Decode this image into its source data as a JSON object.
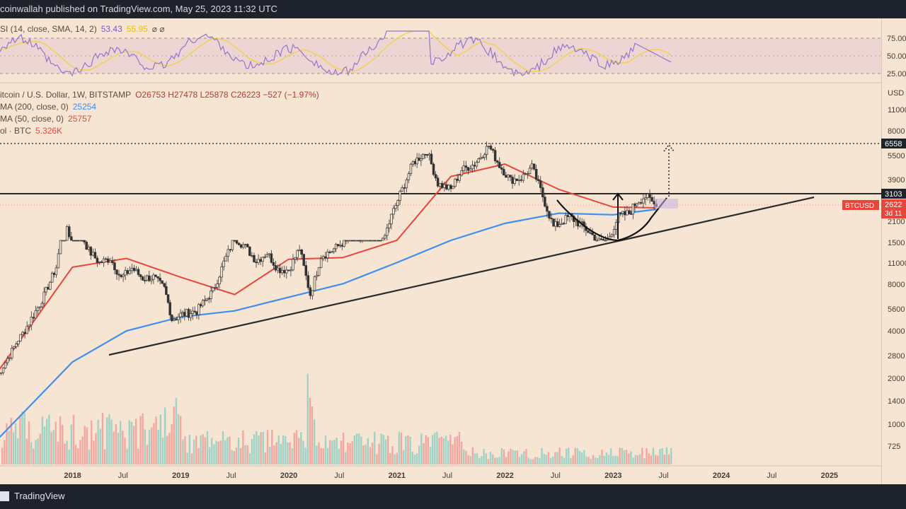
{
  "header": {
    "publisher": "coinwallah published on TradingView.com, May 25, 2023 11:32 UTC"
  },
  "footer": {
    "brand": "TradingView"
  },
  "legends": {
    "rsi": {
      "label": "SI (14, close, SMA, 14, 2)",
      "value": "53.43",
      "value2": "55.95",
      "icons": "⌀ ⌀"
    },
    "symbol": {
      "label": "itcoin / U.S. Dollar, 1W, BITSTAMP",
      "ohlc": "O26753  H27478  L25878  C26223  −527 (−1.97%)"
    },
    "sma200": {
      "label": "MA (200, close, 0)",
      "value": "25254",
      "color": "#3d8ff0"
    },
    "sma50": {
      "label": "MA (50, close, 0)",
      "value": "25757",
      "color": "#e8453c"
    },
    "vol": {
      "label": "ol · BTC",
      "value": "5.326K",
      "color": "#e8453c"
    }
  },
  "rsi_axis": [
    "75.00",
    "50.00",
    "25.00"
  ],
  "price_axis": [
    "USD",
    "11000",
    "8000",
    "6558",
    "5500",
    "3900",
    "3103",
    "2622",
    "3d 11",
    "2100",
    "1500",
    "11000",
    "8000",
    "5600",
    "4000",
    "2800",
    "2000",
    "1400",
    "1000",
    "725"
  ],
  "price_tags": {
    "resistance": "3103",
    "target": "6558",
    "current": "2622",
    "countdown": "3d 11",
    "symbol_tag": "BTCUSD"
  },
  "x_axis": [
    "2018",
    "Jul",
    "2019",
    "Jul",
    "2020",
    "Jul",
    "2021",
    "Jul",
    "2022",
    "Jul",
    "2023",
    "Jul",
    "2024",
    "Jul",
    "2025"
  ],
  "colors": {
    "up": "#26a69a",
    "down": "#ef5350",
    "sma200": "#3d8ff0",
    "sma50": "#e8453c",
    "rsi": "#9575cd",
    "rsi_ma": "#f2d04c",
    "bg": "#f7e5d3"
  },
  "chart_data": {
    "type": "candlestick",
    "symbol": "BTCUSD",
    "interval": "1W",
    "y_scale": "log",
    "series": [
      {
        "name": "Bitcoin / U.S. Dollar",
        "values": [
          [
            2017.3,
            1400
          ],
          [
            2017.5,
            2600
          ],
          [
            2017.7,
            4300
          ],
          [
            2017.85,
            7500
          ],
          [
            2017.95,
            19000
          ],
          [
            2018.05,
            13500
          ],
          [
            2018.15,
            9500
          ],
          [
            2018.25,
            8000
          ],
          [
            2018.35,
            8500
          ],
          [
            2018.45,
            6400
          ],
          [
            2018.55,
            7400
          ],
          [
            2018.65,
            6400
          ],
          [
            2018.75,
            6500
          ],
          [
            2018.85,
            5500
          ],
          [
            2018.92,
            3500
          ],
          [
            2019.0,
            3700
          ],
          [
            2019.15,
            3900
          ],
          [
            2019.3,
            5300
          ],
          [
            2019.4,
            8000
          ],
          [
            2019.5,
            11500
          ],
          [
            2019.6,
            10000
          ],
          [
            2019.7,
            8200
          ],
          [
            2019.8,
            9200
          ],
          [
            2019.9,
            7300
          ],
          [
            2020.0,
            7200
          ],
          [
            2020.1,
            9800
          ],
          [
            2020.2,
            5000
          ],
          [
            2020.3,
            8800
          ],
          [
            2020.4,
            9500
          ],
          [
            2020.55,
            11300
          ],
          [
            2020.7,
            11500
          ],
          [
            2020.85,
            15000
          ],
          [
            2020.95,
            23000
          ],
          [
            2021.05,
            33000
          ],
          [
            2021.15,
            49000
          ],
          [
            2021.28,
            58000
          ],
          [
            2021.38,
            36000
          ],
          [
            2021.5,
            33000
          ],
          [
            2021.6,
            44000
          ],
          [
            2021.72,
            48000
          ],
          [
            2021.85,
            63000
          ],
          [
            2021.95,
            47000
          ],
          [
            2022.05,
            38000
          ],
          [
            2022.15,
            39000
          ],
          [
            2022.25,
            46000
          ],
          [
            2022.35,
            30000
          ],
          [
            2022.45,
            20000
          ],
          [
            2022.6,
            23000
          ],
          [
            2022.75,
            19500
          ],
          [
            2022.87,
            16500
          ],
          [
            2022.95,
            16800
          ],
          [
            2023.05,
            23000
          ],
          [
            2023.15,
            24000
          ],
          [
            2023.22,
            28000
          ],
          [
            2023.3,
            30000
          ],
          [
            2023.4,
            26223
          ]
        ]
      },
      {
        "name": "SMA 200",
        "values": [
          [
            2017.3,
            500
          ],
          [
            2018.0,
            1800
          ],
          [
            2018.5,
            3000
          ],
          [
            2019.0,
            3600
          ],
          [
            2019.5,
            3900
          ],
          [
            2020.0,
            4800
          ],
          [
            2020.5,
            5900
          ],
          [
            2021.0,
            8000
          ],
          [
            2021.5,
            14000
          ],
          [
            2022.0,
            21000
          ],
          [
            2022.5,
            24000
          ],
          [
            2023.0,
            23500
          ],
          [
            2023.4,
            25254
          ]
        ]
      },
      {
        "name": "SMA 50",
        "values": [
          [
            2017.3,
            1500
          ],
          [
            2018.0,
            7500
          ],
          [
            2018.5,
            8500
          ],
          [
            2019.0,
            6500
          ],
          [
            2019.5,
            5000
          ],
          [
            2020.0,
            8400
          ],
          [
            2020.5,
            8600
          ],
          [
            2021.0,
            13000
          ],
          [
            2021.5,
            40000
          ],
          [
            2022.0,
            48000
          ],
          [
            2022.5,
            33000
          ],
          [
            2023.0,
            26000
          ],
          [
            2023.4,
            25757
          ]
        ]
      }
    ],
    "rsi": {
      "value": 53.43,
      "levels": [
        75,
        50,
        25
      ],
      "ylim": [
        20,
        95
      ]
    },
    "annotations": {
      "support_trendline": {
        "from": [
          2018.5,
          3100
        ],
        "to": [
          2024.75,
          31000
        ]
      },
      "resistance_level": 31030,
      "target_level": 65580,
      "cup_bottom": 15500
    },
    "xlabel": "",
    "ylabel": "USD",
    "grid": false
  }
}
